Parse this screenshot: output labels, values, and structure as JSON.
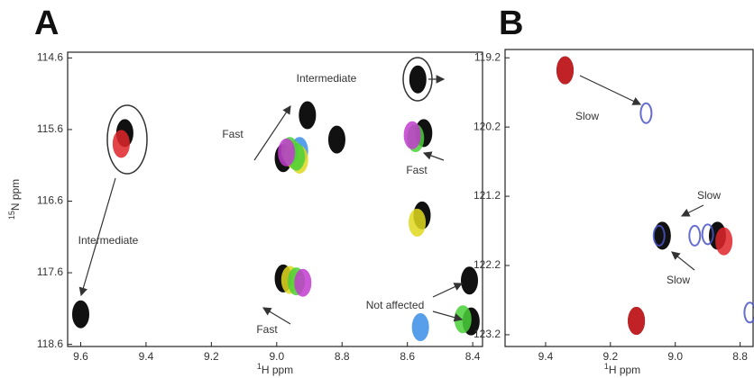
{
  "chart_data": [
    {
      "type": "scatter",
      "panel": "A",
      "x_label_sup": "1",
      "x_label": "H ppm",
      "y_label_sup": "15",
      "y_label": "N ppm",
      "xlim": [
        9.64,
        8.37
      ],
      "ylim": [
        114.52,
        118.63
      ],
      "xticks": [
        9.6,
        9.4,
        9.2,
        {
          "value": 9,
          "label": "9.0"
        },
        8.8,
        8.6,
        8.4
      ],
      "yticks": [
        114.6,
        115.6,
        116.6,
        117.6,
        118.6
      ],
      "annotations": [
        "Intermediate",
        "Fast",
        "Fast",
        "Intermediate",
        "Fast",
        "Not affected"
      ],
      "series": [
        {
          "color": "#111111",
          "x": [
            9.6,
            9.465,
            8.568,
            8.906,
            8.98,
            8.816,
            8.55,
            8.555,
            8.98,
            8.41,
            8.405
          ],
          "values": [
            118.18,
            115.65,
            114.9,
            115.4,
            116.0,
            115.74,
            115.65,
            116.8,
            117.68,
            117.71,
            118.28
          ]
        },
        {
          "color": "#e0252a",
          "x": [
            9.476
          ],
          "values": [
            115.8
          ]
        },
        {
          "color": "#3a8ee8",
          "x": [
            8.93,
            8.56
          ],
          "values": [
            115.9,
            118.36
          ]
        },
        {
          "color": "#e0d91e",
          "x": [
            8.95,
            8.93,
            8.57,
            8.96
          ],
          "values": [
            115.95,
            116.02,
            116.9,
            117.7
          ]
        },
        {
          "color": "#4bd13a",
          "x": [
            8.96,
            8.94,
            8.575,
            8.94,
            8.43
          ],
          "values": [
            115.9,
            115.98,
            115.72,
            117.72,
            118.25
          ]
        },
        {
          "color": "#c33ccf",
          "x": [
            8.97,
            8.585,
            8.92
          ],
          "values": [
            115.92,
            115.68,
            117.74
          ]
        }
      ]
    },
    {
      "type": "scatter",
      "panel": "B",
      "x_label_sup": "1",
      "x_label": "H ppm",
      "xlim": [
        9.525,
        8.76
      ],
      "ylim": [
        119.08,
        123.37
      ],
      "xticks": [
        9.4,
        9.2,
        {
          "value": 9,
          "label": "9.0"
        },
        8.8
      ],
      "yticks": [
        119.2,
        120.2,
        121.2,
        122.2,
        123.2
      ],
      "annotations": [
        "Slow",
        "Slow",
        "Slow"
      ],
      "series": [
        {
          "color": "#111111",
          "x": [
            9.34,
            9.04,
            8.87,
            9.12
          ],
          "values": [
            119.38,
            121.77,
            121.77,
            123.0
          ]
        },
        {
          "color": "#e0252a",
          "x": [
            9.34,
            8.85,
            9.12
          ],
          "values": [
            119.38,
            121.85,
            123.0
          ]
        },
        {
          "color": "#4a55c8",
          "x": [
            9.09,
            8.94,
            8.9,
            9.05,
            8.77
          ],
          "values": [
            120.0,
            121.77,
            121.75,
            121.77,
            122.88
          ]
        }
      ]
    }
  ]
}
